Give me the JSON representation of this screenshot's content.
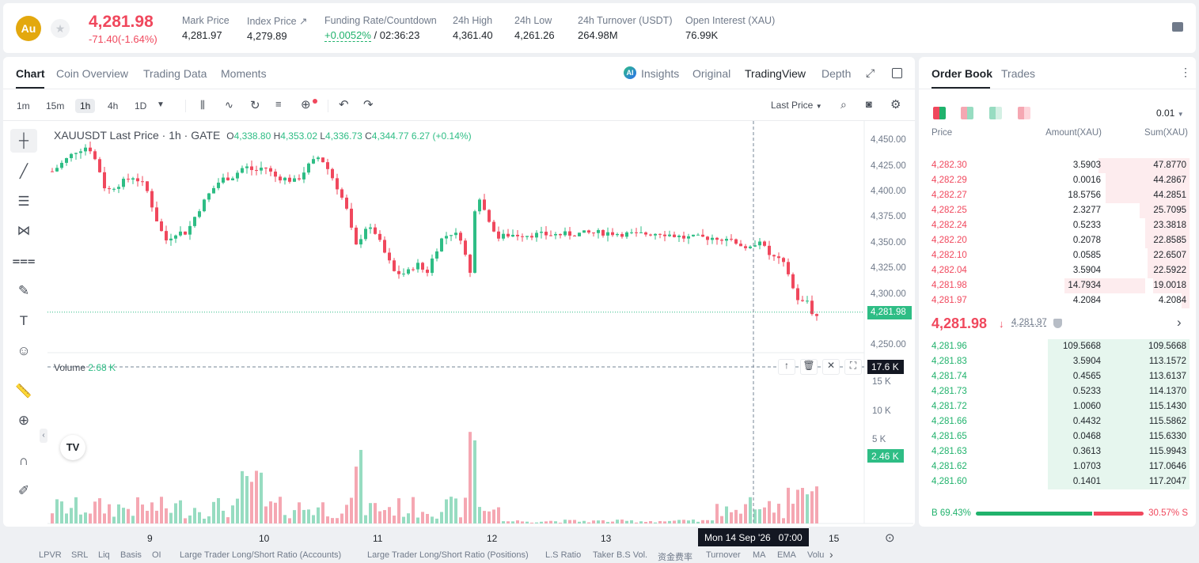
{
  "header": {
    "logo_text": "Au",
    "last_price": "4,281.98",
    "change": "-71.40(-1.64%)",
    "stats": [
      {
        "label": "Mark Price",
        "value": "4,281.97"
      },
      {
        "label": "Index Price ↗",
        "value": "4,279.89"
      },
      {
        "label": "Funding Rate/Countdown",
        "value": "+0.0052%",
        "value2": "/ 02:36:23"
      },
      {
        "label": "24h High",
        "value": "4,361.40"
      },
      {
        "label": "24h Low",
        "value": "4,261.26"
      },
      {
        "label": "24h Turnover (USDT)",
        "value": "264.98M"
      },
      {
        "label": "Open Interest (XAU)",
        "value": "76.99K"
      }
    ]
  },
  "chart_tabs": [
    "Chart",
    "Coin Overview",
    "Trading Data",
    "Moments"
  ],
  "view_tabs": [
    "Insights",
    "Original",
    "TradingView",
    "Depth"
  ],
  "timeframes": [
    "1m",
    "15m",
    "1h",
    "4h",
    "1D"
  ],
  "price_source": "Last Price",
  "legend": {
    "symbol": "XAUUSDT Last Price · 1h · GATE",
    "o_label": "O",
    "o": "4,338.80",
    "h_label": "H",
    "h": "4,353.02",
    "l_label": "L",
    "l": "4,336.73",
    "c_label": "C",
    "c": "4,344.77",
    "chg": "6.27 (+0.14%)"
  },
  "volume_legend": {
    "label": "Volume",
    "value": "2.68 K"
  },
  "price_axis": [
    "4,450.00",
    "4,425.00",
    "4,400.00",
    "4,375.00",
    "4,350.00",
    "4,325.00",
    "4,300.00",
    "4,250.00"
  ],
  "price_marker": "4,281.98",
  "volume_axis": [
    "15 K",
    "10 K",
    "5 K"
  ],
  "volume_cursor_label": "17.6 K",
  "volume_marker": "2.46 K",
  "x_axis": [
    "9",
    "10",
    "11",
    "12",
    "13",
    "15"
  ],
  "crosshair_time": "Mon 14 Sep '26   07:00",
  "bottom_menu": [
    "LPVR",
    "SRL",
    "Liq",
    "Basis",
    "OI",
    "Large Trader Long/Short Ratio (Accounts)",
    "Large Trader Long/Short Ratio (Positions)",
    "L.S Ratio",
    "Taker B.S Vol.",
    "资金费率",
    "Turnover",
    "MA",
    "EMA",
    "Volu"
  ],
  "orderbook": {
    "tabs": [
      "Order Book",
      "Trades"
    ],
    "precision": "0.01",
    "columns": [
      "Price",
      "Amount(XAU)",
      "Sum(XAU)"
    ],
    "asks": [
      {
        "price": "4,282.30",
        "amount": "3.5903",
        "sum": "47.8770",
        "depth": 0.35
      },
      {
        "price": "4,282.29",
        "amount": "0.0016",
        "sum": "44.2867",
        "depth": 0.32
      },
      {
        "price": "4,282.27",
        "amount": "18.5756",
        "sum": "44.2851",
        "depth": 0.32
      },
      {
        "price": "4,282.25",
        "amount": "2.3277",
        "sum": "25.7095",
        "depth": 0.19
      },
      {
        "price": "4,282.24",
        "amount": "0.5233",
        "sum": "23.3818",
        "depth": 0.17
      },
      {
        "price": "4,282.20",
        "amount": "0.2078",
        "sum": "22.8585",
        "depth": 0.17
      },
      {
        "price": "4,282.10",
        "amount": "0.0585",
        "sum": "22.6507",
        "depth": 0.16
      },
      {
        "price": "4,282.04",
        "amount": "3.5904",
        "sum": "22.5922",
        "depth": 0.16
      },
      {
        "price": "4,281.98",
        "amount": "14.7934",
        "sum": "19.0018",
        "depth": 0.14,
        "amount_depth": 0.31
      },
      {
        "price": "4,281.97",
        "amount": "4.2084",
        "sum": "4.2084",
        "depth": 0.03
      }
    ],
    "mid_price": "4,281.98",
    "mid_mark": "4,281.97",
    "bids": [
      {
        "price": "4,281.96",
        "amount": "109.5668",
        "sum": "109.5668",
        "depth": 0.94
      },
      {
        "price": "4,281.83",
        "amount": "3.5904",
        "sum": "113.1572",
        "depth": 0.94
      },
      {
        "price": "4,281.74",
        "amount": "0.4565",
        "sum": "113.6137",
        "depth": 0.94
      },
      {
        "price": "4,281.73",
        "amount": "0.5233",
        "sum": "114.1370",
        "depth": 0.94
      },
      {
        "price": "4,281.72",
        "amount": "1.0060",
        "sum": "115.1430",
        "depth": 0.94
      },
      {
        "price": "4,281.66",
        "amount": "0.4432",
        "sum": "115.5862",
        "depth": 0.94
      },
      {
        "price": "4,281.65",
        "amount": "0.0468",
        "sum": "115.6330",
        "depth": 0.94
      },
      {
        "price": "4,281.63",
        "amount": "0.3613",
        "sum": "115.9943",
        "depth": 0.94
      },
      {
        "price": "4,281.62",
        "amount": "1.0703",
        "sum": "117.0646",
        "depth": 0.94
      },
      {
        "price": "4,281.60",
        "amount": "0.1401",
        "sum": "117.2047",
        "depth": 0.94
      }
    ],
    "buy_ratio_label": "B 69.43%",
    "sell_ratio_label": "30.57% S",
    "buy_ratio": 0.6943
  },
  "colors": {
    "up": "#2ebd85",
    "down": "#f0485d",
    "up_vol": "#97dcc1",
    "down_vol": "#f5a7b2"
  }
}
